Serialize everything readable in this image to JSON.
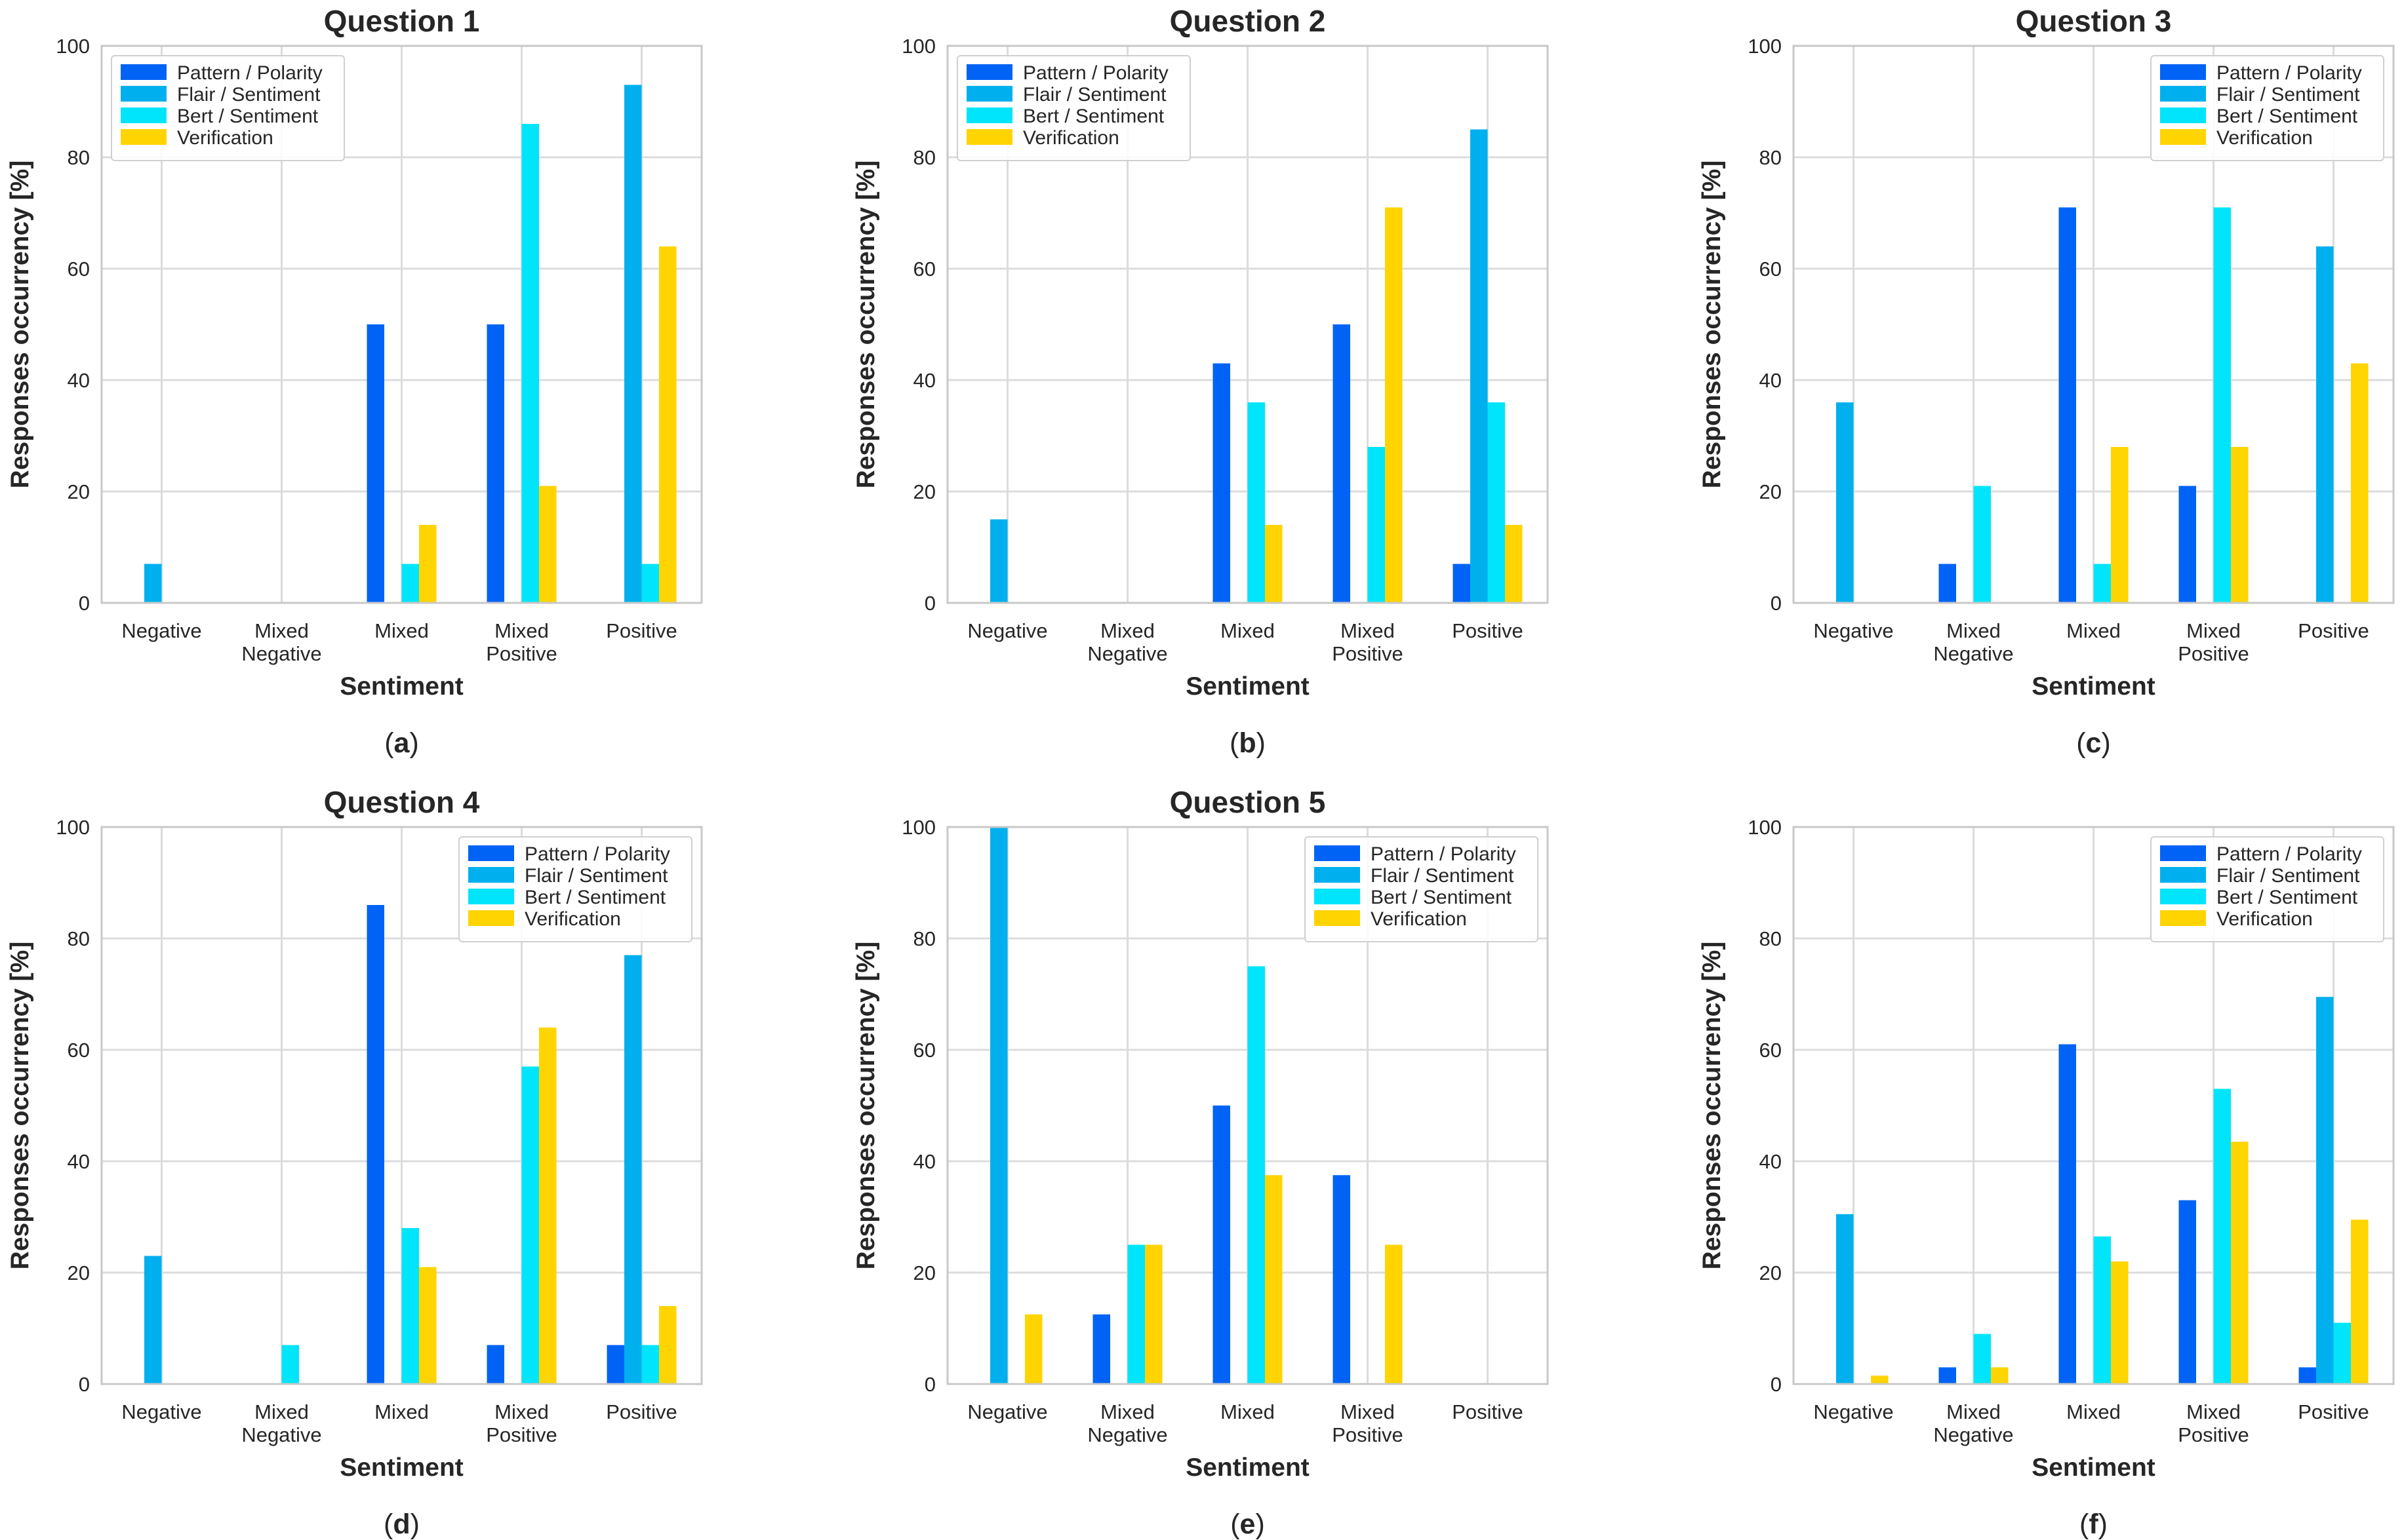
{
  "colors": {
    "pattern": "#0063f5",
    "flair": "#00b0ee",
    "bert": "#00e5fb",
    "verification": "#ffd400",
    "grid": "#dcdcdc",
    "axes": "#c8c8c8"
  },
  "chart_data": [
    {
      "type": "bar",
      "panel": "(a)",
      "panel_letter": "a",
      "title": "Question 1",
      "xlabel": "Sentiment",
      "ylabel": "Responses occurrency [%]",
      "ylim": [
        0,
        100
      ],
      "yticks": [
        "0",
        "20",
        "40",
        "60",
        "80",
        "100"
      ],
      "legend_position": "top-left",
      "categories": [
        "Negative",
        "Mixed Negative",
        "Mixed",
        "Mixed Positive",
        "Positive"
      ],
      "series": [
        {
          "name": "Pattern / Polarity",
          "values": [
            0,
            0,
            50,
            50,
            0
          ]
        },
        {
          "name": "Flair / Sentiment",
          "values": [
            7,
            0,
            0,
            0,
            93
          ]
        },
        {
          "name": "Bert / Sentiment",
          "values": [
            0,
            0,
            7,
            86,
            7
          ]
        },
        {
          "name": "Verification",
          "values": [
            0,
            0,
            14,
            21,
            64
          ]
        }
      ]
    },
    {
      "type": "bar",
      "panel": "(b)",
      "panel_letter": "b",
      "title": "Question 2",
      "xlabel": "Sentiment",
      "ylabel": "Responses occurrency [%]",
      "ylim": [
        0,
        100
      ],
      "yticks": [
        "0",
        "20",
        "40",
        "60",
        "80",
        "100"
      ],
      "legend_position": "top-left",
      "categories": [
        "Negative",
        "Mixed Negative",
        "Mixed",
        "Mixed Positive",
        "Positive"
      ],
      "series": [
        {
          "name": "Pattern / Polarity",
          "values": [
            0,
            0,
            43,
            50,
            7
          ]
        },
        {
          "name": "Flair / Sentiment",
          "values": [
            15,
            0,
            0,
            0,
            85
          ]
        },
        {
          "name": "Bert / Sentiment",
          "values": [
            0,
            0,
            36,
            28,
            36
          ]
        },
        {
          "name": "Verification",
          "values": [
            0,
            0,
            14,
            71,
            14
          ]
        }
      ]
    },
    {
      "type": "bar",
      "panel": "(c)",
      "panel_letter": "c",
      "title": "Question 3",
      "xlabel": "Sentiment",
      "ylabel": "Responses occurrency [%]",
      "ylim": [
        0,
        100
      ],
      "yticks": [
        "0",
        "20",
        "40",
        "60",
        "80",
        "100"
      ],
      "legend_position": "top-right",
      "categories": [
        "Negative",
        "Mixed Negative",
        "Mixed",
        "Mixed Positive",
        "Positive"
      ],
      "series": [
        {
          "name": "Pattern / Polarity",
          "values": [
            0,
            7,
            71,
            21,
            0
          ]
        },
        {
          "name": "Flair / Sentiment",
          "values": [
            36,
            0,
            0,
            0,
            64
          ]
        },
        {
          "name": "Bert / Sentiment",
          "values": [
            0,
            21,
            7,
            71,
            0
          ]
        },
        {
          "name": "Verification",
          "values": [
            0,
            0,
            28,
            28,
            43
          ]
        }
      ]
    },
    {
      "type": "bar",
      "panel": "(d)",
      "panel_letter": "d",
      "title": "Question 4",
      "xlabel": "Sentiment",
      "ylabel": "Responses occurrency [%]",
      "ylim": [
        0,
        100
      ],
      "yticks": [
        "0",
        "20",
        "40",
        "60",
        "80",
        "100"
      ],
      "legend_position": "top-right",
      "categories": [
        "Negative",
        "Mixed Negative",
        "Mixed",
        "Mixed Positive",
        "Positive"
      ],
      "series": [
        {
          "name": "Pattern / Polarity",
          "values": [
            0,
            0,
            86,
            7,
            7
          ]
        },
        {
          "name": "Flair / Sentiment",
          "values": [
            23,
            0,
            0,
            0,
            77
          ]
        },
        {
          "name": "Bert / Sentiment",
          "values": [
            0,
            7,
            28,
            57,
            7
          ]
        },
        {
          "name": "Verification",
          "values": [
            0,
            0,
            21,
            64,
            14
          ]
        }
      ]
    },
    {
      "type": "bar",
      "panel": "(e)",
      "panel_letter": "e",
      "title": "Question 5",
      "xlabel": "Sentiment",
      "ylabel": "Responses occurrency [%]",
      "ylim": [
        0,
        100
      ],
      "yticks": [
        "0",
        "20",
        "40",
        "60",
        "80",
        "100"
      ],
      "legend_position": "top-right",
      "categories": [
        "Negative",
        "Mixed Negative",
        "Mixed",
        "Mixed Positive",
        "Positive"
      ],
      "series": [
        {
          "name": "Pattern / Polarity",
          "values": [
            0,
            12.5,
            50,
            37.5,
            0
          ]
        },
        {
          "name": "Flair / Sentiment",
          "values": [
            100,
            0,
            0,
            0,
            0
          ]
        },
        {
          "name": "Bert / Sentiment",
          "values": [
            0,
            25,
            75,
            0,
            0
          ]
        },
        {
          "name": "Verification",
          "values": [
            12.5,
            25,
            37.5,
            25,
            0
          ]
        }
      ]
    },
    {
      "type": "bar",
      "panel": "(f)",
      "panel_letter": "f",
      "title": "",
      "xlabel": "Sentiment",
      "ylabel": "Responses occurrency [%]",
      "ylim": [
        0,
        100
      ],
      "yticks": [
        "0",
        "20",
        "40",
        "60",
        "80",
        "100"
      ],
      "legend_position": "top-right",
      "categories": [
        "Negative",
        "Mixed Negative",
        "Mixed",
        "Mixed Positive",
        "Positive"
      ],
      "series": [
        {
          "name": "Pattern / Polarity",
          "values": [
            0,
            3,
            61,
            33,
            3
          ]
        },
        {
          "name": "Flair / Sentiment",
          "values": [
            30.5,
            0,
            0,
            0,
            69.5
          ]
        },
        {
          "name": "Bert / Sentiment",
          "values": [
            0,
            9,
            26.5,
            53,
            11
          ]
        },
        {
          "name": "Verification",
          "values": [
            1.5,
            3,
            22,
            43.5,
            29.5
          ]
        }
      ]
    }
  ]
}
